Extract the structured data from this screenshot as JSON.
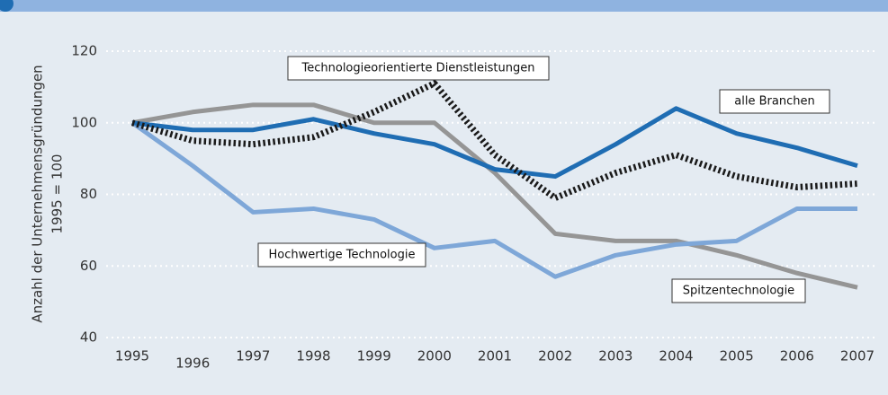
{
  "chart_data": {
    "type": "line",
    "y_label": [
      "Anzahl der Unternehmensgründungen",
      "1995 = 100"
    ],
    "x": [
      1995,
      1996,
      1997,
      1998,
      1999,
      2000,
      2001,
      2002,
      2003,
      2004,
      2005,
      2006,
      2007
    ],
    "series": [
      {
        "name": "alle Branchen",
        "color": "#1f6db3",
        "style": "solid",
        "values": [
          100,
          98,
          98,
          101,
          97,
          94,
          87,
          85,
          94,
          104,
          97,
          93,
          88
        ]
      },
      {
        "name": "Technologieorientierte Dienstleistungen",
        "color": "#1a1a1a",
        "style": "dotted",
        "values": [
          100,
          95,
          94,
          96,
          103,
          111,
          91,
          79,
          86,
          91,
          85,
          82,
          83
        ]
      },
      {
        "name": "Spitzentechnologie",
        "color": "#959595",
        "style": "solid",
        "values": [
          100,
          103,
          105,
          105,
          100,
          100,
          86,
          69,
          67,
          67,
          63,
          58,
          54
        ]
      },
      {
        "name": "Hochwertige Technologie",
        "color": "#7ea7d8",
        "style": "solid",
        "values": [
          100,
          88,
          75,
          76,
          73,
          65,
          67,
          57,
          63,
          66,
          67,
          76,
          76
        ]
      }
    ],
    "xlim": [
      1995,
      2007
    ],
    "ylim": [
      40,
      120
    ],
    "yticks": [
      40,
      60,
      80,
      100,
      120
    ],
    "grid": true
  }
}
